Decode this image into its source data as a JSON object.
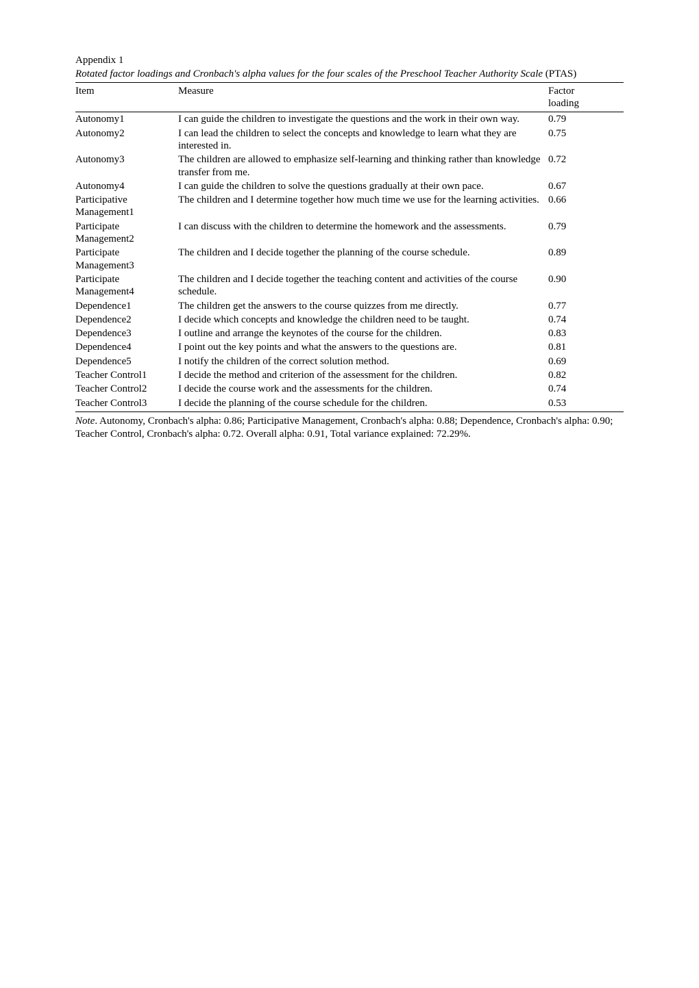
{
  "header": {
    "appendix": "Appendix 1",
    "caption_italic": "Rotated factor loadings and Cronbach's alpha values for the four scales of the Preschool Teacher Authority Scale",
    "caption_tail": " (PTAS)"
  },
  "table": {
    "columns": {
      "item": "Item",
      "measure": "Measure",
      "factor_l1": "Factor",
      "factor_l2": "loading"
    },
    "rows": [
      {
        "item": "Autonomy1",
        "measure": "I can guide the children to investigate the questions and the work in their own way.",
        "loading": "0.79"
      },
      {
        "item": "Autonomy2",
        "measure": "I can lead the children to select the concepts and knowledge to learn what they are interested in.",
        "loading": "0.75"
      },
      {
        "item": "Autonomy3",
        "measure": "The children are allowed to emphasize self-learning and thinking rather than knowledge transfer from me.",
        "loading": "0.72"
      },
      {
        "item": "Autonomy4",
        "measure": "I can guide the children to solve the questions gradually at their own pace.",
        "loading": "0.67"
      },
      {
        "item": "Participative Management1",
        "measure": "The children and I determine together how much time we use for the learning activities.",
        "loading": "0.66"
      },
      {
        "item": "Participate Management2",
        "measure": "I can discuss with the children to determine the homework and the assessments.",
        "loading": "0.79"
      },
      {
        "item": "Participate Management3",
        "measure": "The children and I decide together the planning of the course schedule.",
        "loading": "0.89"
      },
      {
        "item": "Participate Management4",
        "measure": "The children and I decide together the teaching content and activities of the course schedule.",
        "loading": "0.90"
      },
      {
        "item": "Dependence1",
        "measure": "The children get the answers to the course quizzes from me directly.",
        "loading": "0.77"
      },
      {
        "item": "Dependence2",
        "measure": "I decide which concepts and knowledge the children need to be taught.",
        "loading": "0.74"
      },
      {
        "item": "Dependence3",
        "measure": "I outline and arrange the keynotes of the course for the children.",
        "loading": "0.83"
      },
      {
        "item": "Dependence4",
        "measure": "I point out the key points and what the answers to the questions are.",
        "loading": "0.81"
      },
      {
        "item": "Dependence5",
        "measure": "I notify the children of the correct solution method.",
        "loading": "0.69"
      },
      {
        "item": "Teacher Control1",
        "measure": "I decide the method and criterion of the assessment for the children.",
        "loading": "0.82"
      },
      {
        "item": "Teacher Control2",
        "measure": "I decide the course work and the assessments for the children.",
        "loading": "0.74"
      },
      {
        "item": "Teacher Control3",
        "measure": "I decide the planning of the course schedule for the children.",
        "loading": "0.53"
      }
    ]
  },
  "note": {
    "label": "Note",
    "text": ". Autonomy, Cronbach's alpha: 0.86; Participative Management, Cronbach's alpha: 0.88; Dependence, Cronbach's alpha: 0.90; Teacher Control, Cronbach's alpha: 0.72. Overall alpha: 0.91, Total variance explained: 72.29%."
  }
}
